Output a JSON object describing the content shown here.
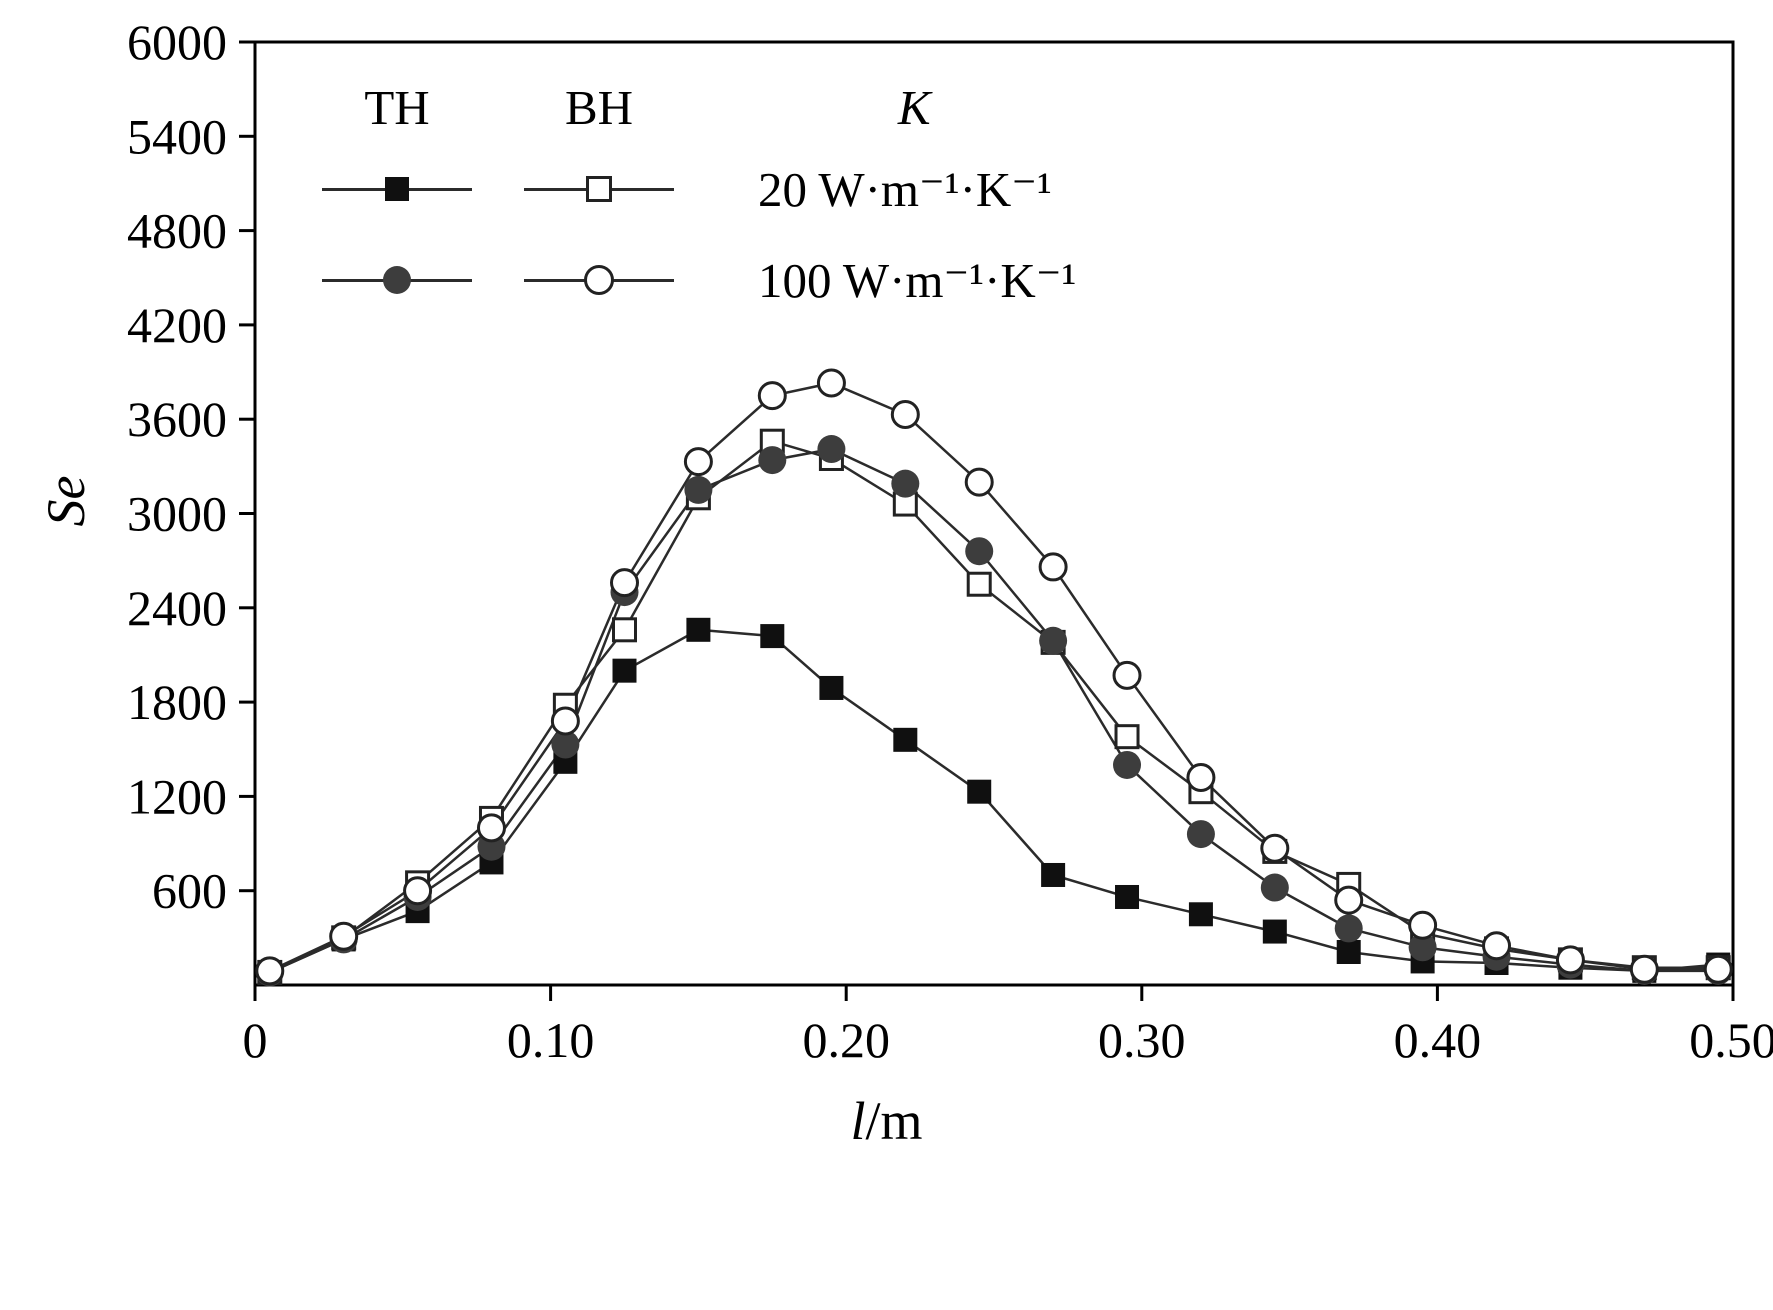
{
  "chart_data": {
    "type": "line",
    "title": "",
    "xlabel_italic": "l",
    "xlabel_unit": "/m",
    "ylabel": "Se",
    "xlim": [
      0,
      0.5
    ],
    "ylim": [
      0,
      6000
    ],
    "grid": false,
    "xtick_values": [
      0,
      0.1,
      0.2,
      0.3,
      0.4,
      0.5
    ],
    "xtick_labels": [
      "0",
      "0.10",
      "0.20",
      "0.30",
      "0.40",
      "0.50"
    ],
    "ytick_values": [
      600,
      1200,
      1800,
      2400,
      3000,
      3600,
      4200,
      4800,
      5400,
      6000
    ],
    "ytick_labels": [
      "600",
      "1200",
      "1800",
      "2400",
      "3000",
      "3600",
      "4200",
      "4800",
      "5400",
      "6000"
    ],
    "x": [
      0.005,
      0.03,
      0.055,
      0.08,
      0.105,
      0.125,
      0.15,
      0.175,
      0.195,
      0.22,
      0.245,
      0.27,
      0.295,
      0.32,
      0.345,
      0.37,
      0.395,
      0.42,
      0.445,
      0.47,
      0.495
    ],
    "series": [
      {
        "name": "TH, K = 20 W·m⁻¹·K⁻¹",
        "marker": "filled-square",
        "values": [
          80,
          290,
          470,
          780,
          1420,
          2000,
          2260,
          2220,
          1890,
          1560,
          1230,
          700,
          560,
          450,
          340,
          210,
          150,
          140,
          110,
          90,
          130
        ]
      },
      {
        "name": "BH, K = 20 W·m⁻¹·K⁻¹",
        "marker": "open-square",
        "values": [
          80,
          300,
          650,
          1060,
          1780,
          2260,
          3100,
          3460,
          3350,
          3060,
          2550,
          2180,
          1580,
          1230,
          850,
          640,
          330,
          230,
          160,
          110,
          110
        ]
      },
      {
        "name": "TH, K = 100 W·m⁻¹·K⁻¹",
        "marker": "filled-circle",
        "values": [
          80,
          290,
          560,
          880,
          1530,
          2500,
          3150,
          3340,
          3410,
          3190,
          2760,
          2190,
          1400,
          960,
          620,
          360,
          240,
          180,
          130,
          90,
          90
        ]
      },
      {
        "name": "BH, K = 100 W·m⁻¹·K⁻¹",
        "marker": "open-circle",
        "values": [
          90,
          310,
          600,
          1000,
          1680,
          2560,
          3330,
          3750,
          3830,
          3630,
          3200,
          2660,
          1970,
          1320,
          870,
          540,
          380,
          250,
          160,
          100,
          100
        ]
      }
    ],
    "legend": {
      "position": "top-left inside",
      "columns": [
        "TH",
        "BH",
        "K"
      ],
      "rows": [
        {
          "k_label": "20 W·m⁻¹·K⁻¹"
        },
        {
          "k_label": "100 W·m⁻¹·K⁻¹"
        }
      ]
    }
  }
}
